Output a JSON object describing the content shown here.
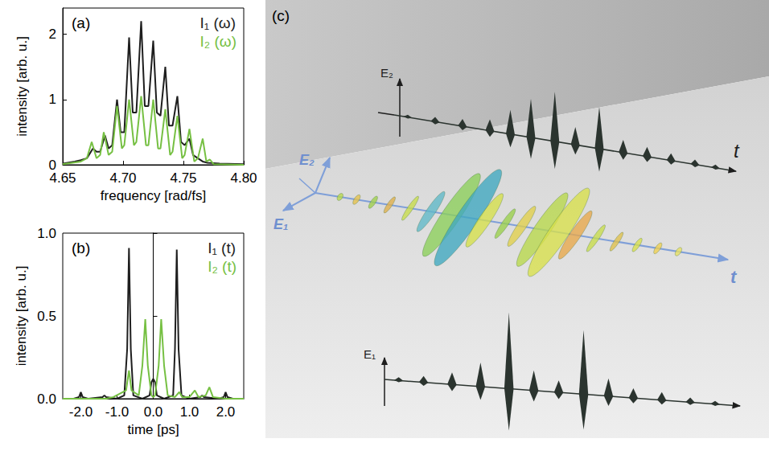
{
  "chart_data": [
    {
      "type": "line",
      "title": "(a)",
      "x_label": "frequency [rad/fs]",
      "y_label": "intensity [arb. u.]",
      "xlim": [
        4.65,
        4.8
      ],
      "xticks": [
        {
          "value": 4.65,
          "label": "4.65"
        },
        {
          "value": 4.7,
          "label": "4.70"
        },
        {
          "value": 4.75,
          "label": "4.75"
        },
        {
          "value": 4.8,
          "label": "4.80"
        }
      ],
      "ylim": [
        0,
        2.4
      ],
      "yticks": [
        0,
        1,
        2
      ],
      "grid": false,
      "legend": "top-right",
      "series": [
        {
          "name": "I₁ (ω)",
          "color": "#1e1e1e",
          "x": [
            4.65,
            4.66,
            4.665,
            4.67,
            4.675,
            4.678,
            4.681,
            4.685,
            4.688,
            4.691,
            4.695,
            4.698,
            4.701,
            4.705,
            4.708,
            4.711,
            4.715,
            4.718,
            4.721,
            4.725,
            4.728,
            4.731,
            4.735,
            4.738,
            4.741,
            4.745,
            4.748,
            4.751,
            4.755,
            4.758,
            4.762,
            4.766,
            4.77,
            4.78,
            4.8
          ],
          "values": [
            0.02,
            0.05,
            0.07,
            0.1,
            0.25,
            0.2,
            0.2,
            0.45,
            0.25,
            0.3,
            1.0,
            0.5,
            0.5,
            1.95,
            0.8,
            0.8,
            2.2,
            0.9,
            0.9,
            1.9,
            0.8,
            0.75,
            1.5,
            0.6,
            0.6,
            1.05,
            0.35,
            0.3,
            0.4,
            0.15,
            0.1,
            0.05,
            0.03,
            0.02,
            0.01
          ]
        },
        {
          "name": "I₂ (ω)",
          "color": "#76c043",
          "x": [
            4.65,
            4.665,
            4.67,
            4.674,
            4.678,
            4.681,
            4.684,
            4.688,
            4.691,
            4.695,
            4.699,
            4.701,
            4.705,
            4.709,
            4.711,
            4.715,
            4.719,
            4.721,
            4.725,
            4.729,
            4.731,
            4.735,
            4.739,
            4.741,
            4.745,
            4.749,
            4.751,
            4.755,
            4.759,
            4.762,
            4.766,
            4.769,
            4.772,
            4.775,
            4.8
          ],
          "values": [
            0.01,
            0.05,
            0.1,
            0.35,
            0.1,
            0.15,
            0.5,
            0.15,
            0.2,
            0.9,
            0.25,
            0.3,
            1.0,
            0.3,
            0.35,
            1.05,
            0.3,
            0.3,
            1.0,
            0.25,
            0.25,
            0.85,
            0.15,
            0.2,
            0.75,
            0.1,
            0.15,
            0.55,
            0.05,
            0.1,
            0.4,
            0.05,
            0.08,
            0.01,
            0
          ]
        }
      ]
    },
    {
      "type": "line",
      "title": "(b)",
      "x_label": "time [ps]",
      "y_label": "intensity [arb. u.]",
      "xlim": [
        -2.5,
        2.5
      ],
      "xticks": [
        {
          "value": -2,
          "label": "-2.0"
        },
        {
          "value": -1,
          "label": "-1.0"
        },
        {
          "value": 0,
          "label": "0.0"
        },
        {
          "value": 1,
          "label": "1.0"
        },
        {
          "value": 2,
          "label": "2.0"
        }
      ],
      "ylim": [
        0,
        1
      ],
      "yticks": [
        {
          "value": 0,
          "label": "0.0"
        },
        0.5,
        {
          "value": 1,
          "label": "1.0"
        }
      ],
      "grid": false,
      "legend": "top-right",
      "series": [
        {
          "name": "I₁ (t)",
          "color": "#1e1e1e",
          "x": [
            -2.5,
            -2.2,
            -2.05,
            -2.0,
            -1.95,
            -1.8,
            -1.4,
            -1.35,
            -1.3,
            -1.0,
            -0.8,
            -0.72,
            -0.67,
            -0.62,
            -0.55,
            -0.3,
            -0.1,
            -0.05,
            0.0,
            0.05,
            0.1,
            0.3,
            0.55,
            0.6,
            0.65,
            0.7,
            0.78,
            1.0,
            1.3,
            1.35,
            1.4,
            1.8,
            1.95,
            2.0,
            2.05,
            2.2,
            2.5
          ],
          "values": [
            0,
            0,
            0.01,
            0.04,
            0.01,
            0,
            0.01,
            0.02,
            0.01,
            0,
            0.02,
            0.3,
            0.91,
            0.3,
            0.02,
            0,
            0.02,
            0.1,
            0.12,
            0.1,
            0.02,
            0,
            0.02,
            0.3,
            0.9,
            0.3,
            0.02,
            0,
            0.01,
            0.02,
            0.01,
            0,
            0.01,
            0.04,
            0.01,
            0,
            0
          ]
        },
        {
          "name": "I₂ (t)",
          "color": "#76c043",
          "x": [
            -2.5,
            -1.3,
            -1.1,
            -0.75,
            -0.67,
            -0.6,
            -0.4,
            -0.3,
            -0.22,
            -0.15,
            -0.05,
            0.0,
            0.05,
            0.15,
            0.22,
            0.3,
            0.4,
            0.6,
            0.72,
            0.8,
            1.0,
            1.15,
            1.25,
            1.45,
            1.55,
            1.65,
            2.0,
            2.5
          ],
          "values": [
            0,
            0,
            0.01,
            0.05,
            0.17,
            0.05,
            0.02,
            0.2,
            0.48,
            0.2,
            0.02,
            0.01,
            0.02,
            0.2,
            0.48,
            0.2,
            0.02,
            0.01,
            0.04,
            0.01,
            0.01,
            0.05,
            0.01,
            0.02,
            0.07,
            0.01,
            0,
            0
          ]
        }
      ]
    }
  ],
  "illustration": {
    "label": "(c)",
    "upper_trace": {
      "axis": "E₂",
      "time": "t"
    },
    "lower_trace": {
      "axis": "E₁"
    },
    "field_frame": {
      "axis_1": "E₁",
      "axis_2": "E₂",
      "time": "t"
    }
  }
}
